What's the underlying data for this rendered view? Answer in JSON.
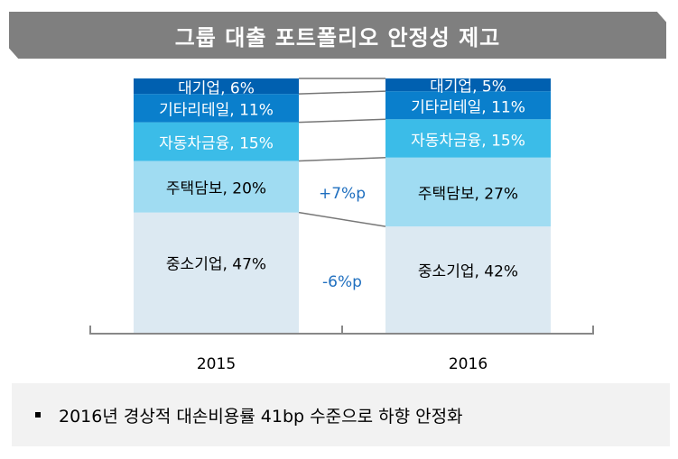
{
  "title": "그룹 대출 포트폴리오 안정성 제고",
  "chart_data": {
    "type": "bar",
    "stacked": true,
    "categories": [
      "2015",
      "2016"
    ],
    "series": [
      {
        "name": "중소기업",
        "values": [
          47,
          42
        ],
        "color": "#dce9f2",
        "text_color": "#000000"
      },
      {
        "name": "주택담보",
        "values": [
          20,
          27
        ],
        "color": "#a0dcf2",
        "text_color": "#000000"
      },
      {
        "name": "자동차금융",
        "values": [
          15,
          15
        ],
        "color": "#3bbce8",
        "text_color": "#ffffff"
      },
      {
        "name": "기타리테일",
        "values": [
          11,
          11
        ],
        "color": "#0a7fcc",
        "text_color": "#ffffff"
      },
      {
        "name": "대기업",
        "values": [
          6,
          5
        ],
        "color": "#0060b0",
        "text_color": "#ffffff"
      }
    ],
    "labels": [
      [
        "중소기업, 47%",
        "중소기업, 42%"
      ],
      [
        "주택담보, 20%",
        "주택담보, 27%"
      ],
      [
        "자동차금융, 15%",
        "자동차금융, 15%"
      ],
      [
        "기타리테일, 11%",
        "기타리테일, 11%"
      ],
      [
        "대기업, 6%",
        "대기업, 5%"
      ]
    ],
    "annotations": [
      {
        "text": "+7%p",
        "series": "주택담보"
      },
      {
        "text": "-6%p",
        "series": "중소기업"
      }
    ],
    "annotation_color": "#1f6fbf",
    "ylim": [
      0,
      100
    ]
  },
  "note": "2016년 경상적 대손비용률 41bp 수준으로 하향 안정화"
}
